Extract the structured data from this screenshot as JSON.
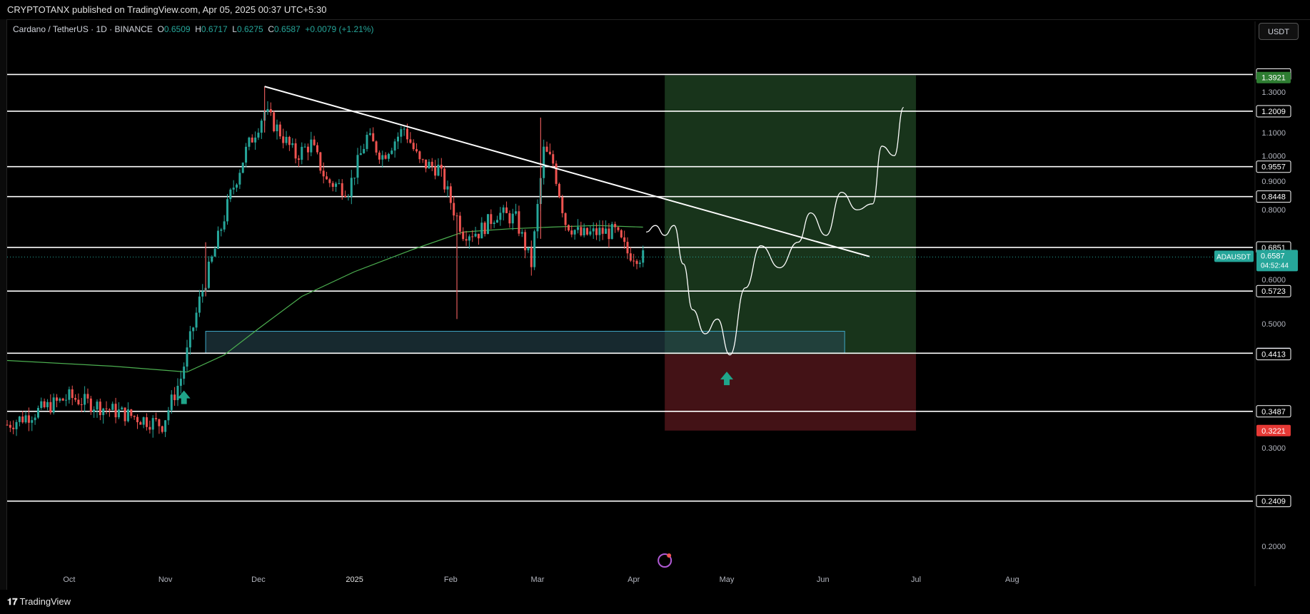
{
  "header": {
    "publisher_line": "CRYPTOTANX published on TradingView.com, Apr 05, 2025 00:37 UTC+5:30"
  },
  "symbol": {
    "name": "Cardano / TetherUS · 1D · BINANCE",
    "open_key": "O",
    "open": "0.6509",
    "high_key": "H",
    "high": "0.6717",
    "low_key": "L",
    "low": "0.6275",
    "close_key": "C",
    "close": "0.6587",
    "change": "+0.0079 (+1.21%)"
  },
  "currency_button": "USDT",
  "footer": {
    "logo_text": "TradingView"
  },
  "colors": {
    "up": "#26a69a",
    "down": "#ef5350",
    "ma": "#4caf50",
    "target_zone": "#1b3a1e",
    "stop_zone": "#4a1418",
    "support_box": "#2a4a55"
  },
  "chart_data": {
    "type": "candlestick",
    "y_scale": "log",
    "ylim": [
      0.19,
      1.52
    ],
    "y_ticks": [
      "1.3000",
      "1.1000",
      "1.0000",
      "0.9000",
      "0.8000",
      "0.6000",
      "0.5000",
      "0.3000",
      "0.2000"
    ],
    "x_ticks": [
      {
        "label": "Oct",
        "date": "2024-10-01"
      },
      {
        "label": "Nov",
        "date": "2024-11-01"
      },
      {
        "label": "Dec",
        "date": "2024-12-01"
      },
      {
        "label": "2025",
        "date": "2025-01-01"
      },
      {
        "label": "Feb",
        "date": "2025-02-01"
      },
      {
        "label": "Mar",
        "date": "2025-03-01"
      },
      {
        "label": "Apr",
        "date": "2025-04-01"
      },
      {
        "label": "May",
        "date": "2025-05-01"
      },
      {
        "label": "Jun",
        "date": "2025-06-01"
      },
      {
        "label": "Jul",
        "date": "2025-07-01"
      },
      {
        "label": "Aug",
        "date": "2025-08-01"
      }
    ],
    "horizontal_levels": [
      {
        "value": 1.3975,
        "label": "1.3975"
      },
      {
        "value": 1.2009,
        "label": "1.2009"
      },
      {
        "value": 0.9557,
        "label": "0.9557"
      },
      {
        "value": 0.8448,
        "label": "0.8448"
      },
      {
        "value": 0.6851,
        "label": "0.6851"
      },
      {
        "value": 0.5723,
        "label": "0.5723"
      },
      {
        "value": 0.443,
        "label": "0.4430"
      },
      {
        "value": 0.3487,
        "label": "0.3487"
      },
      {
        "value": 0.2409,
        "label": "0.2409"
      }
    ],
    "price_badges": [
      {
        "value": 1.3921,
        "label": "1.3921",
        "kind": "target"
      },
      {
        "value": 0.4413,
        "label": "0.4413",
        "kind": "entry"
      },
      {
        "value": 0.3221,
        "label": "0.3221",
        "kind": "stop"
      }
    ],
    "last_price": {
      "value": 0.6587,
      "label": "0.6587",
      "symbol": "ADAUSDT",
      "countdown": "04:52:44"
    },
    "anchors": [
      {
        "date": "2024-09-11",
        "price": 0.33
      },
      {
        "date": "2024-10-01",
        "price": 0.37
      },
      {
        "date": "2024-10-15",
        "price": 0.35
      },
      {
        "date": "2024-10-31",
        "price": 0.33
      },
      {
        "date": "2024-11-06",
        "price": 0.4
      },
      {
        "date": "2024-11-12",
        "price": 0.55
      },
      {
        "date": "2024-11-17",
        "price": 0.68
      },
      {
        "date": "2024-11-22",
        "price": 0.85
      },
      {
        "date": "2024-11-27",
        "price": 1.02
      },
      {
        "date": "2024-12-03",
        "price": 1.2
      },
      {
        "date": "2024-12-08",
        "price": 1.1
      },
      {
        "date": "2024-12-13",
        "price": 1.0
      },
      {
        "date": "2024-12-18",
        "price": 1.05
      },
      {
        "date": "2024-12-23",
        "price": 0.9
      },
      {
        "date": "2024-12-30",
        "price": 0.87
      },
      {
        "date": "2025-01-05",
        "price": 1.08
      },
      {
        "date": "2025-01-10",
        "price": 1.0
      },
      {
        "date": "2025-01-17",
        "price": 1.12
      },
      {
        "date": "2025-01-22",
        "price": 0.97
      },
      {
        "date": "2025-01-28",
        "price": 0.95
      },
      {
        "date": "2025-02-02",
        "price": 0.8
      },
      {
        "date": "2025-02-05",
        "price": 0.73
      },
      {
        "date": "2025-02-10",
        "price": 0.73
      },
      {
        "date": "2025-02-16",
        "price": 0.79
      },
      {
        "date": "2025-02-22",
        "price": 0.77
      },
      {
        "date": "2025-02-27",
        "price": 0.64
      },
      {
        "date": "2025-03-03",
        "price": 1.02
      },
      {
        "date": "2025-03-06",
        "price": 0.97
      },
      {
        "date": "2025-03-10",
        "price": 0.76
      },
      {
        "date": "2025-03-15",
        "price": 0.72
      },
      {
        "date": "2025-03-21",
        "price": 0.73
      },
      {
        "date": "2025-03-26",
        "price": 0.73
      },
      {
        "date": "2025-03-30",
        "price": 0.67
      },
      {
        "date": "2025-04-04",
        "price": 0.6587
      }
    ],
    "spikes": [
      {
        "date": "2024-12-03",
        "high": 1.33,
        "low": 1.1
      },
      {
        "date": "2025-02-03",
        "high": 0.78,
        "low": 0.51
      },
      {
        "date": "2025-03-02",
        "high": 1.17,
        "low": 0.71
      },
      {
        "date": "2024-11-14",
        "high": 0.7,
        "low": 0.56
      }
    ],
    "moving_average": [
      {
        "date": "2024-09-11",
        "price": 0.43
      },
      {
        "date": "2024-10-15",
        "price": 0.42
      },
      {
        "date": "2024-11-08",
        "price": 0.41
      },
      {
        "date": "2024-11-20",
        "price": 0.44
      },
      {
        "date": "2024-12-01",
        "price": 0.49
      },
      {
        "date": "2024-12-15",
        "price": 0.56
      },
      {
        "date": "2025-01-01",
        "price": 0.62
      },
      {
        "date": "2025-01-20",
        "price": 0.68
      },
      {
        "date": "2025-02-05",
        "price": 0.73
      },
      {
        "date": "2025-02-20",
        "price": 0.74
      },
      {
        "date": "2025-03-05",
        "price": 0.745
      },
      {
        "date": "2025-03-20",
        "price": 0.75
      },
      {
        "date": "2025-04-04",
        "price": 0.745
      }
    ],
    "trendline": {
      "start": {
        "date": "2024-12-03",
        "price": 1.33
      },
      "end": {
        "date": "2025-06-16",
        "price": 0.66
      }
    },
    "projection_path": [
      {
        "date": "2025-04-05",
        "price": 0.73
      },
      {
        "date": "2025-04-08",
        "price": 0.75
      },
      {
        "date": "2025-04-11",
        "price": 0.72
      },
      {
        "date": "2025-04-14",
        "price": 0.75
      },
      {
        "date": "2025-04-17",
        "price": 0.64
      },
      {
        "date": "2025-04-20",
        "price": 0.53
      },
      {
        "date": "2025-04-24",
        "price": 0.48
      },
      {
        "date": "2025-04-28",
        "price": 0.51
      },
      {
        "date": "2025-05-02",
        "price": 0.44
      },
      {
        "date": "2025-05-07",
        "price": 0.58
      },
      {
        "date": "2025-05-12",
        "price": 0.69
      },
      {
        "date": "2025-05-18",
        "price": 0.63
      },
      {
        "date": "2025-05-24",
        "price": 0.7
      },
      {
        "date": "2025-05-28",
        "price": 0.79
      },
      {
        "date": "2025-06-02",
        "price": 0.72
      },
      {
        "date": "2025-06-07",
        "price": 0.86
      },
      {
        "date": "2025-06-12",
        "price": 0.8
      },
      {
        "date": "2025-06-17",
        "price": 0.82
      },
      {
        "date": "2025-06-20",
        "price": 1.04
      },
      {
        "date": "2025-06-24",
        "price": 1.0
      },
      {
        "date": "2025-06-27",
        "price": 1.22
      }
    ],
    "position": {
      "start_date": "2025-04-11",
      "end_date": "2025-07-01",
      "target": 1.3921,
      "entry": 0.4413,
      "stop": 0.3221
    },
    "support_box": {
      "start_date": "2024-11-14",
      "end_date": "2025-06-08",
      "top": 0.485,
      "bottom": 0.443
    },
    "buy_arrows": [
      {
        "date": "2024-11-07",
        "price": 0.37
      },
      {
        "date": "2025-05-01",
        "price": 0.4
      }
    ]
  }
}
